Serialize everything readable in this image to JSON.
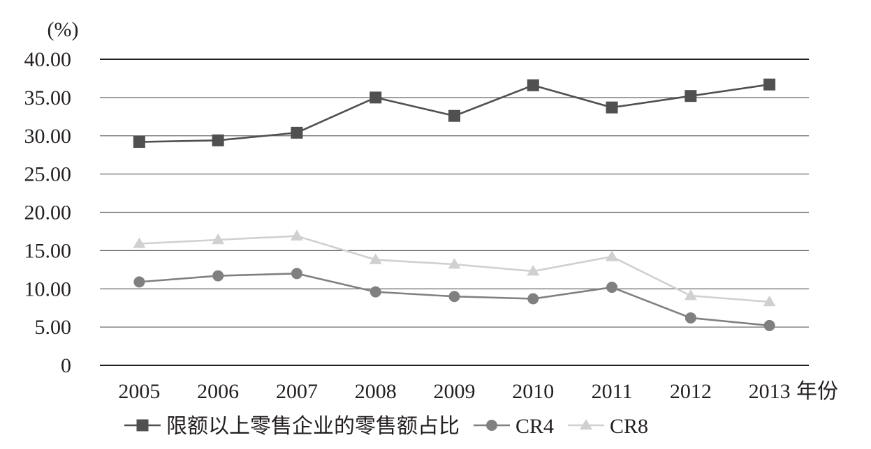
{
  "chart_data": {
    "type": "line",
    "title": "",
    "y_unit_label": "(%)",
    "x_unit_suffix": "年份",
    "categories": [
      "2005",
      "2006",
      "2007",
      "2008",
      "2009",
      "2010",
      "2011",
      "2012",
      "2013"
    ],
    "ylim": [
      0,
      40
    ],
    "yticks": [
      0,
      5,
      10,
      15,
      20,
      25,
      30,
      35,
      40
    ],
    "ytick_labels": [
      "0",
      "5.00",
      "10.00",
      "15.00",
      "20.00",
      "25.00",
      "30.00",
      "35.00",
      "40.00"
    ],
    "grid": true,
    "legend_position": "bottom",
    "series": [
      {
        "name": "限额以上零售企业的零售额占比",
        "marker": "square",
        "color": "#505050",
        "values": [
          29.2,
          29.4,
          30.4,
          35.0,
          32.6,
          36.6,
          33.7,
          35.2,
          36.7
        ]
      },
      {
        "name": "CR4",
        "marker": "circle",
        "color": "#808080",
        "values": [
          10.9,
          11.7,
          12.0,
          9.6,
          9.0,
          8.7,
          10.2,
          6.2,
          5.2
        ]
      },
      {
        "name": "CR8",
        "marker": "triangle",
        "color": "#d0d0d0",
        "values": [
          15.9,
          16.4,
          16.9,
          13.8,
          13.2,
          12.3,
          14.2,
          9.1,
          8.3
        ]
      }
    ]
  }
}
